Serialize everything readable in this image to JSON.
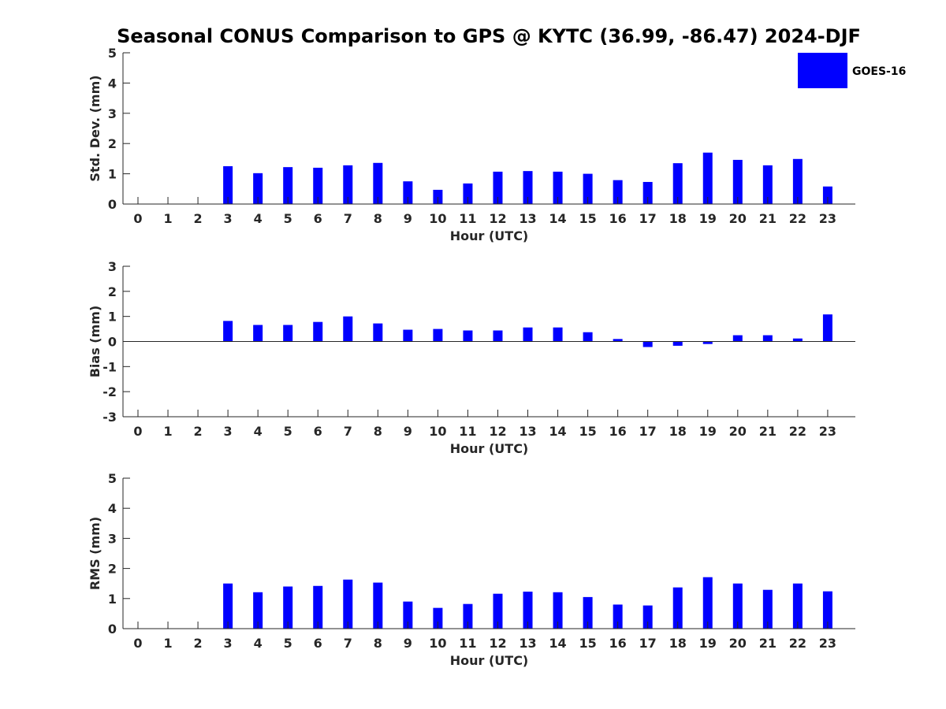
{
  "figure": {
    "title": "Seasonal CONUS Comparison to GPS @ KYTC (36.99, -86.47) 2024-DJF",
    "legend_label": "GOES-16",
    "colors": {
      "bar": "#0000ff",
      "axis": "#262626"
    }
  },
  "chart_data": [
    {
      "type": "bar",
      "title": "Seasonal CONUS Comparison to GPS @ KYTC (36.99, -86.47) 2024-DJF",
      "xlabel": "Hour (UTC)",
      "ylabel": "Std. Dev. (mm)",
      "ylim": [
        0,
        5
      ],
      "yticks": [
        0,
        1,
        2,
        3,
        4,
        5
      ],
      "categories": [
        "0",
        "1",
        "2",
        "3",
        "4",
        "5",
        "6",
        "7",
        "8",
        "9",
        "10",
        "11",
        "12",
        "13",
        "14",
        "15",
        "16",
        "17",
        "18",
        "19",
        "20",
        "21",
        "22",
        "23"
      ],
      "series": [
        {
          "name": "GOES-16",
          "values": [
            null,
            null,
            null,
            1.25,
            1.02,
            1.22,
            1.2,
            1.28,
            1.36,
            0.75,
            0.47,
            0.68,
            1.07,
            1.09,
            1.07,
            1.0,
            0.79,
            0.73,
            1.35,
            1.7,
            1.46,
            1.28,
            1.49,
            0.58
          ]
        }
      ],
      "grid": false,
      "legend": "top-right"
    },
    {
      "type": "bar",
      "xlabel": "Hour (UTC)",
      "ylabel": "Bias (mm)",
      "ylim": [
        -3,
        3
      ],
      "yticks": [
        -3,
        -2,
        -1,
        0,
        1,
        2,
        3
      ],
      "categories": [
        "0",
        "1",
        "2",
        "3",
        "4",
        "5",
        "6",
        "7",
        "8",
        "9",
        "10",
        "11",
        "12",
        "13",
        "14",
        "15",
        "16",
        "17",
        "18",
        "19",
        "20",
        "21",
        "22",
        "23"
      ],
      "series": [
        {
          "name": "GOES-16",
          "values": [
            null,
            null,
            null,
            0.82,
            0.66,
            0.66,
            0.78,
            1.0,
            0.72,
            0.47,
            0.5,
            0.44,
            0.44,
            0.56,
            0.56,
            0.37,
            0.1,
            -0.22,
            -0.17,
            -0.1,
            0.25,
            0.25,
            0.12,
            1.08
          ]
        }
      ],
      "grid": false
    },
    {
      "type": "bar",
      "xlabel": "Hour (UTC)",
      "ylabel": "RMS (mm)",
      "ylim": [
        0,
        5
      ],
      "yticks": [
        0,
        1,
        2,
        3,
        4,
        5
      ],
      "categories": [
        "0",
        "1",
        "2",
        "3",
        "4",
        "5",
        "6",
        "7",
        "8",
        "9",
        "10",
        "11",
        "12",
        "13",
        "14",
        "15",
        "16",
        "17",
        "18",
        "19",
        "20",
        "21",
        "22",
        "23"
      ],
      "series": [
        {
          "name": "GOES-16",
          "values": [
            null,
            null,
            null,
            1.5,
            1.21,
            1.4,
            1.42,
            1.63,
            1.53,
            0.9,
            0.69,
            0.82,
            1.16,
            1.23,
            1.21,
            1.05,
            0.8,
            0.77,
            1.37,
            1.71,
            1.5,
            1.29,
            1.5,
            1.24
          ]
        }
      ],
      "grid": false
    }
  ]
}
